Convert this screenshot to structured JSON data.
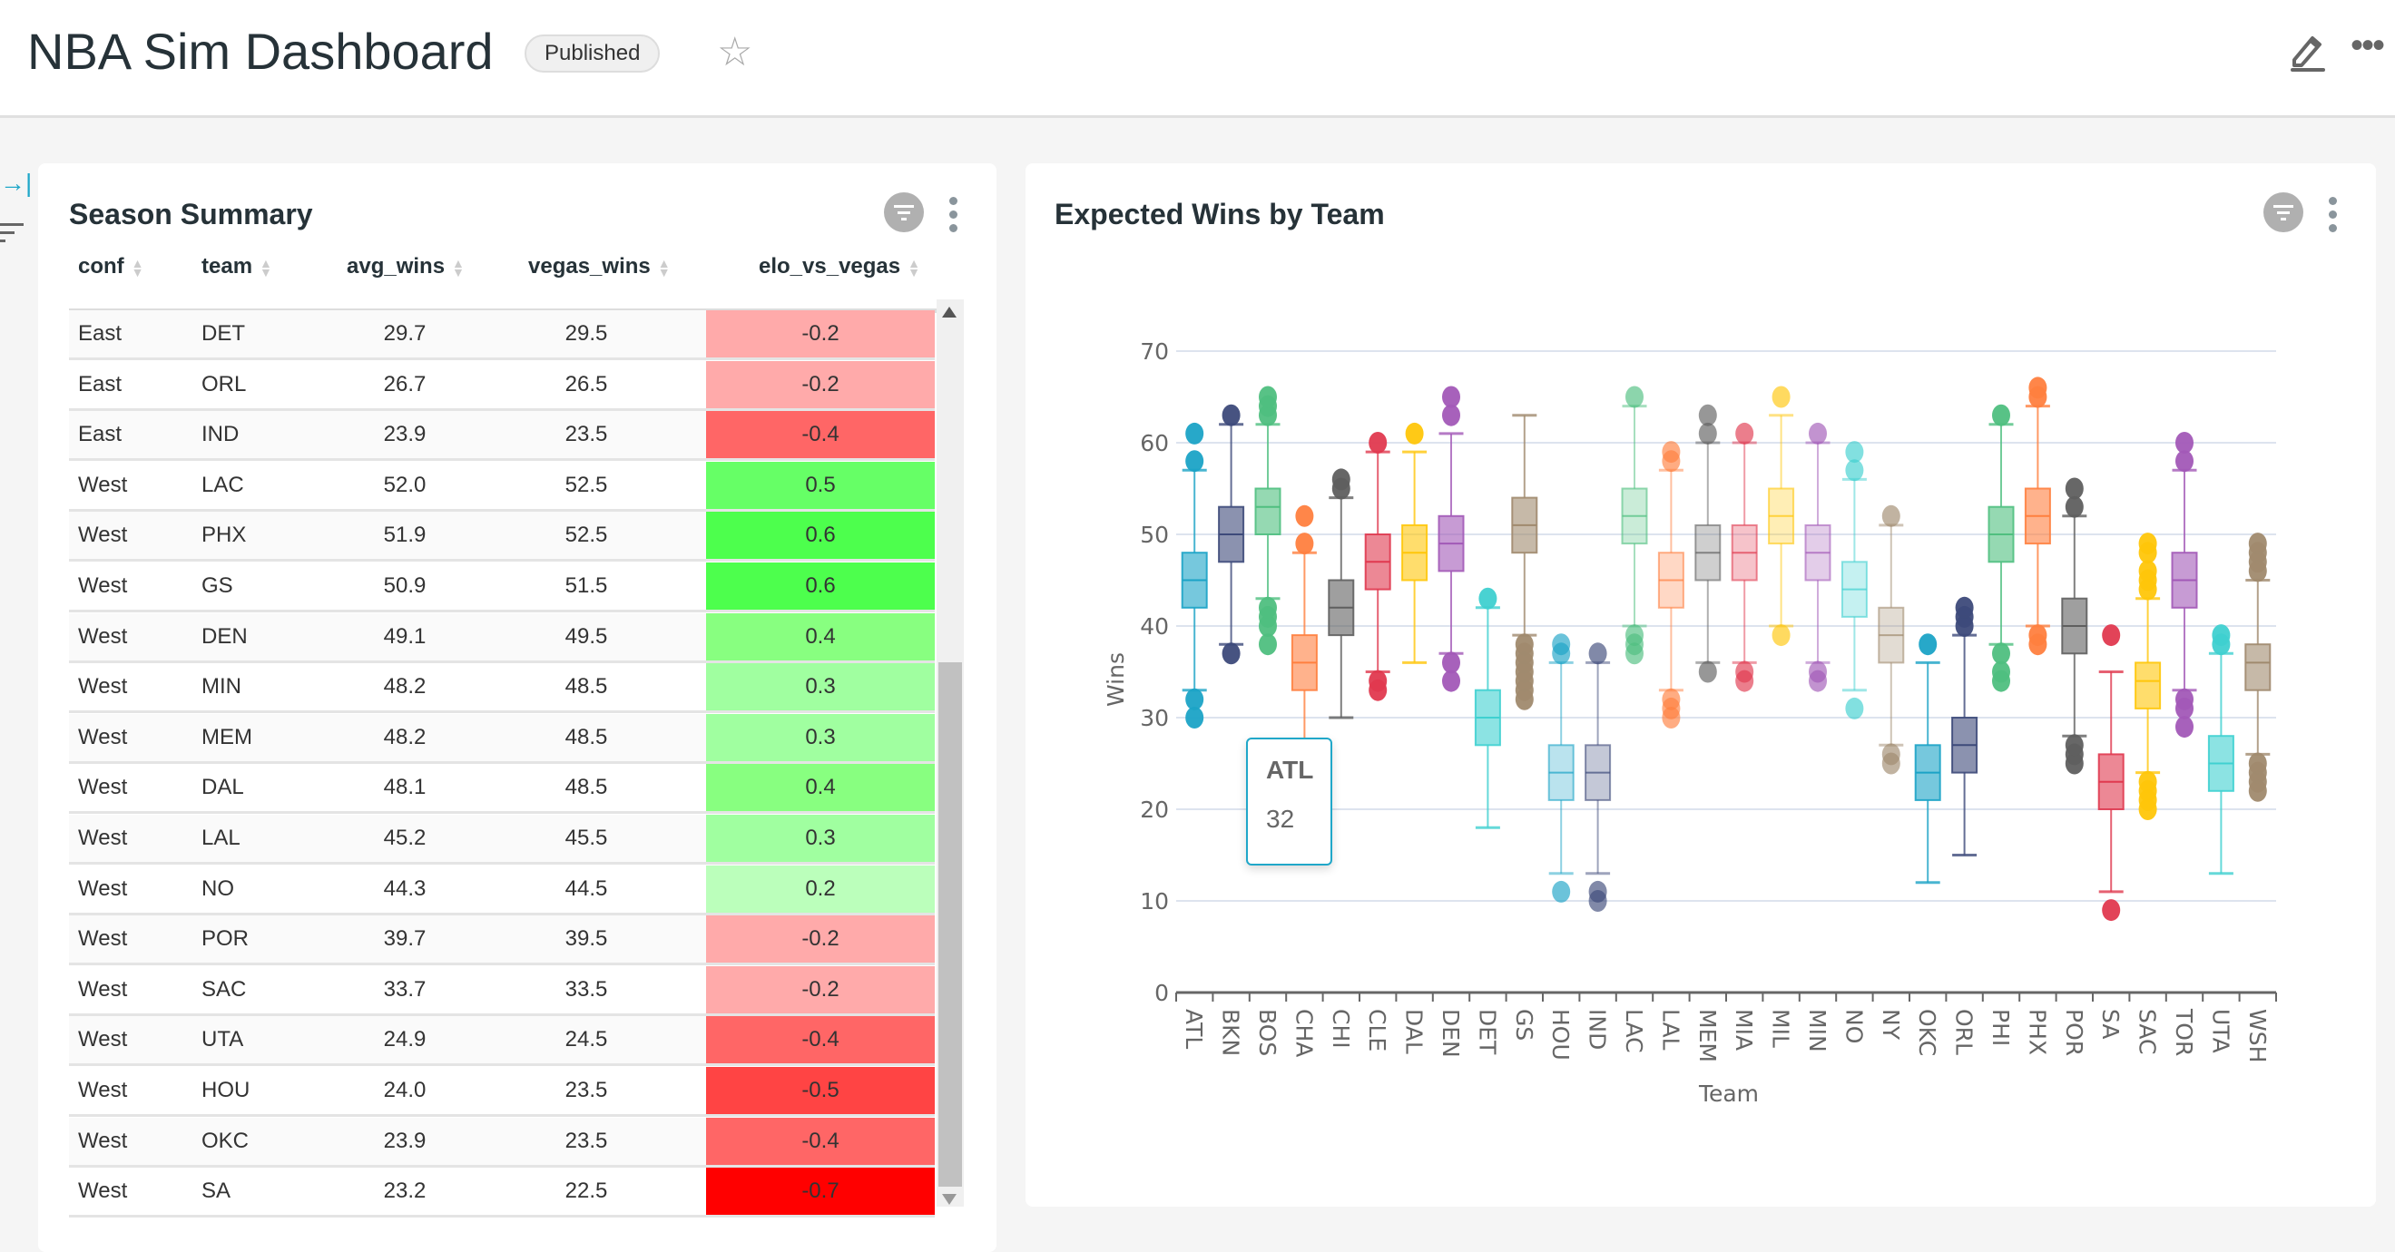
{
  "header": {
    "title": "NBA Sim Dashboard",
    "status_badge": "Published",
    "icons": [
      "star-icon",
      "edit-icon",
      "more-icon"
    ]
  },
  "sidebar": {
    "icons": [
      "collapse-icon",
      "filter-icon"
    ]
  },
  "table_card": {
    "title": "Season Summary",
    "columns": [
      "conf",
      "team",
      "avg_wins",
      "vegas_wins",
      "elo_vs_vegas"
    ],
    "partial_row_color": "#d5ffd5",
    "rows": [
      {
        "conf": "East",
        "team": "DET",
        "avg_wins": "29.7",
        "vegas_wins": "29.5",
        "elo_vs_vegas": "-0.2",
        "color": "#ffaaaa"
      },
      {
        "conf": "East",
        "team": "ORL",
        "avg_wins": "26.7",
        "vegas_wins": "26.5",
        "elo_vs_vegas": "-0.2",
        "color": "#ffaaaa"
      },
      {
        "conf": "East",
        "team": "IND",
        "avg_wins": "23.9",
        "vegas_wins": "23.5",
        "elo_vs_vegas": "-0.4",
        "color": "#ff6666"
      },
      {
        "conf": "West",
        "team": "LAC",
        "avg_wins": "52.0",
        "vegas_wins": "52.5",
        "elo_vs_vegas": "0.5",
        "color": "#66ff66"
      },
      {
        "conf": "West",
        "team": "PHX",
        "avg_wins": "51.9",
        "vegas_wins": "52.5",
        "elo_vs_vegas": "0.6",
        "color": "#4dff4d"
      },
      {
        "conf": "West",
        "team": "GS",
        "avg_wins": "50.9",
        "vegas_wins": "51.5",
        "elo_vs_vegas": "0.6",
        "color": "#4dff4d"
      },
      {
        "conf": "West",
        "team": "DEN",
        "avg_wins": "49.1",
        "vegas_wins": "49.5",
        "elo_vs_vegas": "0.4",
        "color": "#88ff80"
      },
      {
        "conf": "West",
        "team": "MIN",
        "avg_wins": "48.2",
        "vegas_wins": "48.5",
        "elo_vs_vegas": "0.3",
        "color": "#a0ffa0"
      },
      {
        "conf": "West",
        "team": "MEM",
        "avg_wins": "48.2",
        "vegas_wins": "48.5",
        "elo_vs_vegas": "0.3",
        "color": "#a0ffa0"
      },
      {
        "conf": "West",
        "team": "DAL",
        "avg_wins": "48.1",
        "vegas_wins": "48.5",
        "elo_vs_vegas": "0.4",
        "color": "#88ff80"
      },
      {
        "conf": "West",
        "team": "LAL",
        "avg_wins": "45.2",
        "vegas_wins": "45.5",
        "elo_vs_vegas": "0.3",
        "color": "#a0ffa0"
      },
      {
        "conf": "West",
        "team": "NO",
        "avg_wins": "44.3",
        "vegas_wins": "44.5",
        "elo_vs_vegas": "0.2",
        "color": "#bbffbb"
      },
      {
        "conf": "West",
        "team": "POR",
        "avg_wins": "39.7",
        "vegas_wins": "39.5",
        "elo_vs_vegas": "-0.2",
        "color": "#ffaaaa"
      },
      {
        "conf": "West",
        "team": "SAC",
        "avg_wins": "33.7",
        "vegas_wins": "33.5",
        "elo_vs_vegas": "-0.2",
        "color": "#ffaaaa"
      },
      {
        "conf": "West",
        "team": "UTA",
        "avg_wins": "24.9",
        "vegas_wins": "24.5",
        "elo_vs_vegas": "-0.4",
        "color": "#ff6666"
      },
      {
        "conf": "West",
        "team": "HOU",
        "avg_wins": "24.0",
        "vegas_wins": "23.5",
        "elo_vs_vegas": "-0.5",
        "color": "#ff4444"
      },
      {
        "conf": "West",
        "team": "OKC",
        "avg_wins": "23.9",
        "vegas_wins": "23.5",
        "elo_vs_vegas": "-0.4",
        "color": "#ff6666"
      },
      {
        "conf": "West",
        "team": "SA",
        "avg_wins": "23.2",
        "vegas_wins": "22.5",
        "elo_vs_vegas": "-0.7",
        "color": "#ff0000"
      }
    ]
  },
  "chart_card": {
    "title": "Expected Wins by Team",
    "tooltip": {
      "title": "ATL",
      "value": "32"
    }
  },
  "chart_data": {
    "type": "boxplot",
    "xlabel": "Team",
    "ylabel": "Wins",
    "ylim": [
      0,
      70
    ],
    "yticks": [
      0,
      10,
      20,
      30,
      40,
      50,
      60,
      70
    ],
    "grid": true,
    "series": [
      {
        "team": "ATL",
        "color": "#1ba3c6",
        "opacity": 0.6,
        "min": 33,
        "q1": 42,
        "median": 45,
        "q3": 48,
        "max": 57,
        "outliers": [
          30,
          32,
          58,
          61
        ]
      },
      {
        "team": "BKN",
        "color": "#3d4a7a",
        "opacity": 0.6,
        "min": 38,
        "q1": 47,
        "median": 50,
        "q3": 53,
        "max": 62,
        "outliers": [
          37,
          63
        ]
      },
      {
        "team": "BOS",
        "color": "#4fbf7f",
        "opacity": 0.6,
        "min": 43,
        "q1": 50,
        "median": 53,
        "q3": 55,
        "max": 62,
        "outliers": [
          38,
          40,
          41,
          42,
          63,
          64,
          65
        ]
      },
      {
        "team": "CHA",
        "color": "#ff7f3f",
        "opacity": 0.6,
        "min": 24,
        "q1": 33,
        "median": 36,
        "q3": 39,
        "max": 48,
        "outliers": [
          21,
          23,
          49,
          52
        ]
      },
      {
        "team": "CHI",
        "color": "#5f5f5f",
        "opacity": 0.6,
        "min": 30,
        "q1": 39,
        "median": 42,
        "q3": 45,
        "max": 54,
        "outliers": [
          55,
          56
        ]
      },
      {
        "team": "CLE",
        "color": "#e0394f",
        "opacity": 0.6,
        "min": 35,
        "q1": 44,
        "median": 47,
        "q3": 50,
        "max": 59,
        "outliers": [
          33,
          34,
          60
        ]
      },
      {
        "team": "DAL",
        "color": "#ffc60a",
        "opacity": 0.6,
        "min": 36,
        "q1": 45,
        "median": 48,
        "q3": 51,
        "max": 59,
        "outliers": [
          61
        ]
      },
      {
        "team": "DEN",
        "color": "#a259b7",
        "opacity": 0.6,
        "min": 37,
        "q1": 46,
        "median": 49,
        "q3": 52,
        "max": 61,
        "outliers": [
          34,
          36,
          63,
          65
        ]
      },
      {
        "team": "DET",
        "color": "#3fd0d0",
        "opacity": 0.6,
        "min": 18,
        "q1": 27,
        "median": 30,
        "q3": 33,
        "max": 42,
        "outliers": [
          43
        ]
      },
      {
        "team": "GS",
        "color": "#a08a6e",
        "opacity": 0.6,
        "min": 39,
        "q1": 48,
        "median": 51,
        "q3": 54,
        "max": 63,
        "outliers": [
          32,
          33,
          34,
          35,
          36,
          37,
          38
        ]
      },
      {
        "team": "HOU",
        "color": "#1ba3c6",
        "opacity": 0.3,
        "min": 13,
        "q1": 21,
        "median": 24,
        "q3": 27,
        "max": 36,
        "outliers": [
          11,
          37,
          38
        ]
      },
      {
        "team": "IND",
        "color": "#3d4a7a",
        "opacity": 0.3,
        "min": 13,
        "q1": 21,
        "median": 24,
        "q3": 27,
        "max": 36,
        "outliers": [
          10,
          11,
          37
        ]
      },
      {
        "team": "LAC",
        "color": "#4fbf7f",
        "opacity": 0.3,
        "min": 40,
        "q1": 49,
        "median": 52,
        "q3": 55,
        "max": 64,
        "outliers": [
          37,
          38,
          39,
          65
        ]
      },
      {
        "team": "LAL",
        "color": "#ff7f3f",
        "opacity": 0.3,
        "min": 33,
        "q1": 42,
        "median": 45,
        "q3": 48,
        "max": 57,
        "outliers": [
          30,
          31,
          32,
          58,
          59
        ]
      },
      {
        "team": "MEM",
        "color": "#5f5f5f",
        "opacity": 0.3,
        "min": 36,
        "q1": 45,
        "median": 48,
        "q3": 51,
        "max": 60,
        "outliers": [
          35,
          61,
          63
        ]
      },
      {
        "team": "MIA",
        "color": "#e0394f",
        "opacity": 0.3,
        "min": 36,
        "q1": 45,
        "median": 48,
        "q3": 51,
        "max": 60,
        "outliers": [
          34,
          35,
          61
        ]
      },
      {
        "team": "MIL",
        "color": "#ffc60a",
        "opacity": 0.3,
        "min": 40,
        "q1": 49,
        "median": 52,
        "q3": 55,
        "max": 63,
        "outliers": [
          39,
          65
        ]
      },
      {
        "team": "MIN",
        "color": "#a259b7",
        "opacity": 0.3,
        "min": 36,
        "q1": 45,
        "median": 48,
        "q3": 51,
        "max": 60,
        "outliers": [
          34,
          35,
          61
        ]
      },
      {
        "team": "NO",
        "color": "#3fd0d0",
        "opacity": 0.3,
        "min": 33,
        "q1": 41,
        "median": 44,
        "q3": 47,
        "max": 56,
        "outliers": [
          31,
          57,
          59
        ]
      },
      {
        "team": "NY",
        "color": "#a08a6e",
        "opacity": 0.3,
        "min": 27,
        "q1": 36,
        "median": 39,
        "q3": 42,
        "max": 51,
        "outliers": [
          25,
          26,
          52
        ]
      },
      {
        "team": "OKC",
        "color": "#1ba3c6",
        "opacity": 0.6,
        "min": 12,
        "q1": 21,
        "median": 24,
        "q3": 27,
        "max": 36,
        "outliers": [
          38
        ]
      },
      {
        "team": "ORL",
        "color": "#3d4a7a",
        "opacity": 0.6,
        "min": 15,
        "q1": 24,
        "median": 27,
        "q3": 30,
        "max": 39,
        "outliers": [
          40,
          41,
          42
        ]
      },
      {
        "team": "PHI",
        "color": "#4fbf7f",
        "opacity": 0.6,
        "min": 38,
        "q1": 47,
        "median": 50,
        "q3": 53,
        "max": 62,
        "outliers": [
          34,
          35,
          37,
          63
        ]
      },
      {
        "team": "PHX",
        "color": "#ff7f3f",
        "opacity": 0.6,
        "min": 40,
        "q1": 49,
        "median": 52,
        "q3": 55,
        "max": 64,
        "outliers": [
          38,
          39,
          65,
          66
        ]
      },
      {
        "team": "POR",
        "color": "#5f5f5f",
        "opacity": 0.6,
        "min": 28,
        "q1": 37,
        "median": 40,
        "q3": 43,
        "max": 52,
        "outliers": [
          25,
          26,
          27,
          53,
          55
        ]
      },
      {
        "team": "SA",
        "color": "#e0394f",
        "opacity": 0.6,
        "min": 11,
        "q1": 20,
        "median": 23,
        "q3": 26,
        "max": 35,
        "outliers": [
          9,
          39
        ]
      },
      {
        "team": "SAC",
        "color": "#ffc60a",
        "opacity": 0.6,
        "min": 24,
        "q1": 31,
        "median": 34,
        "q3": 36,
        "max": 43,
        "outliers": [
          20,
          21,
          22,
          23,
          44,
          45,
          46,
          48,
          49
        ]
      },
      {
        "team": "TOR",
        "color": "#a259b7",
        "opacity": 0.6,
        "min": 33,
        "q1": 42,
        "median": 45,
        "q3": 48,
        "max": 57,
        "outliers": [
          29,
          31,
          32,
          58,
          60
        ]
      },
      {
        "team": "UTA",
        "color": "#3fd0d0",
        "opacity": 0.6,
        "min": 13,
        "q1": 22,
        "median": 25,
        "q3": 28,
        "max": 37,
        "outliers": [
          38,
          39
        ]
      },
      {
        "team": "WSH",
        "color": "#a08a6e",
        "opacity": 0.6,
        "min": 26,
        "q1": 33,
        "median": 36,
        "q3": 38,
        "max": 45,
        "outliers": [
          22,
          23,
          24,
          25,
          46,
          47,
          48,
          49
        ]
      }
    ]
  }
}
